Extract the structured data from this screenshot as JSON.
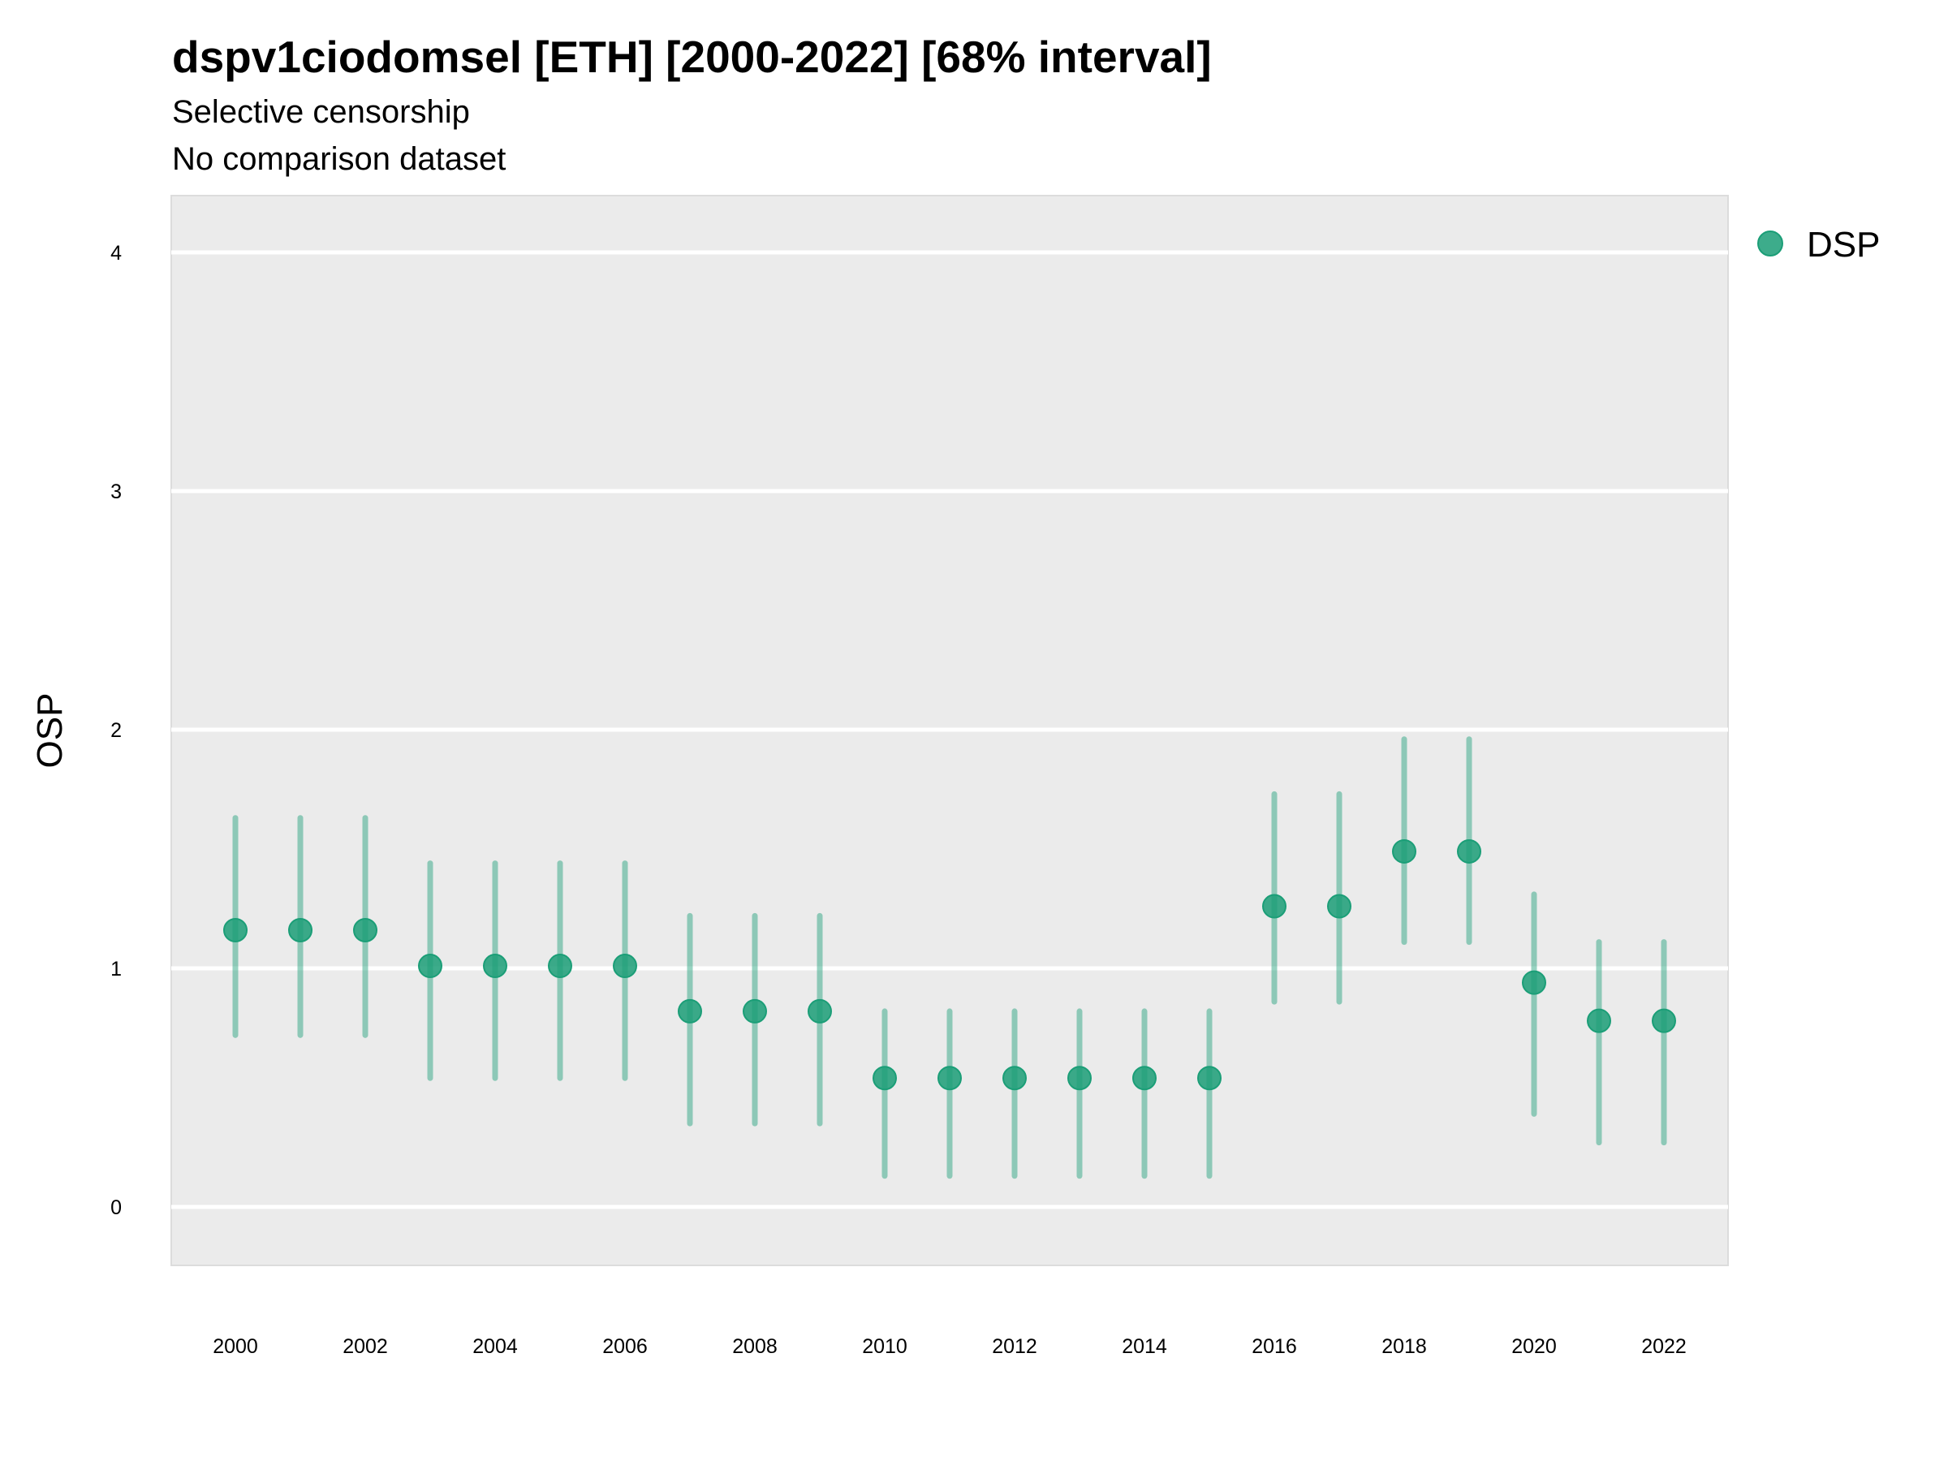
{
  "chart_data": {
    "type": "scatter",
    "title": "dspv1ciodomsel [ETH] [2000-2022] [68% interval]",
    "subtitle": [
      "Selective censorship",
      "No comparison dataset"
    ],
    "xlabel": "",
    "ylabel": "OSP",
    "xlim": [
      1999,
      2023
    ],
    "ylim": [
      -0.25,
      4.25
    ],
    "x_ticks": [
      "2000",
      "2002",
      "2004",
      "2006",
      "2008",
      "2010",
      "2012",
      "2014",
      "2016",
      "2018",
      "2020",
      "2022"
    ],
    "y_ticks": [
      "0",
      "1",
      "2",
      "3",
      "4"
    ],
    "grid": true,
    "legend": {
      "position": "right",
      "entries": [
        "DSP"
      ]
    },
    "series": [
      {
        "name": "DSP",
        "color": "#1b9e77",
        "points": [
          {
            "x": 2000,
            "y": 1.16,
            "lower": 0.72,
            "upper": 1.63
          },
          {
            "x": 2001,
            "y": 1.16,
            "lower": 0.72,
            "upper": 1.63
          },
          {
            "x": 2002,
            "y": 1.16,
            "lower": 0.72,
            "upper": 1.63
          },
          {
            "x": 2003,
            "y": 1.01,
            "lower": 0.54,
            "upper": 1.44
          },
          {
            "x": 2004,
            "y": 1.01,
            "lower": 0.54,
            "upper": 1.44
          },
          {
            "x": 2005,
            "y": 1.01,
            "lower": 0.54,
            "upper": 1.44
          },
          {
            "x": 2006,
            "y": 1.01,
            "lower": 0.54,
            "upper": 1.44
          },
          {
            "x": 2007,
            "y": 0.82,
            "lower": 0.35,
            "upper": 1.22
          },
          {
            "x": 2008,
            "y": 0.82,
            "lower": 0.35,
            "upper": 1.22
          },
          {
            "x": 2009,
            "y": 0.82,
            "lower": 0.35,
            "upper": 1.22
          },
          {
            "x": 2010,
            "y": 0.54,
            "lower": 0.13,
            "upper": 0.82
          },
          {
            "x": 2011,
            "y": 0.54,
            "lower": 0.13,
            "upper": 0.82
          },
          {
            "x": 2012,
            "y": 0.54,
            "lower": 0.13,
            "upper": 0.82
          },
          {
            "x": 2013,
            "y": 0.54,
            "lower": 0.13,
            "upper": 0.82
          },
          {
            "x": 2014,
            "y": 0.54,
            "lower": 0.13,
            "upper": 0.82
          },
          {
            "x": 2015,
            "y": 0.54,
            "lower": 0.13,
            "upper": 0.82
          },
          {
            "x": 2016,
            "y": 1.26,
            "lower": 0.86,
            "upper": 1.73
          },
          {
            "x": 2017,
            "y": 1.26,
            "lower": 0.86,
            "upper": 1.73
          },
          {
            "x": 2018,
            "y": 1.49,
            "lower": 1.11,
            "upper": 1.96
          },
          {
            "x": 2019,
            "y": 1.49,
            "lower": 1.11,
            "upper": 1.96
          },
          {
            "x": 2020,
            "y": 0.94,
            "lower": 0.39,
            "upper": 1.31
          },
          {
            "x": 2021,
            "y": 0.78,
            "lower": 0.27,
            "upper": 1.11
          },
          {
            "x": 2022,
            "y": 0.78,
            "lower": 0.27,
            "upper": 1.11
          }
        ]
      }
    ]
  }
}
